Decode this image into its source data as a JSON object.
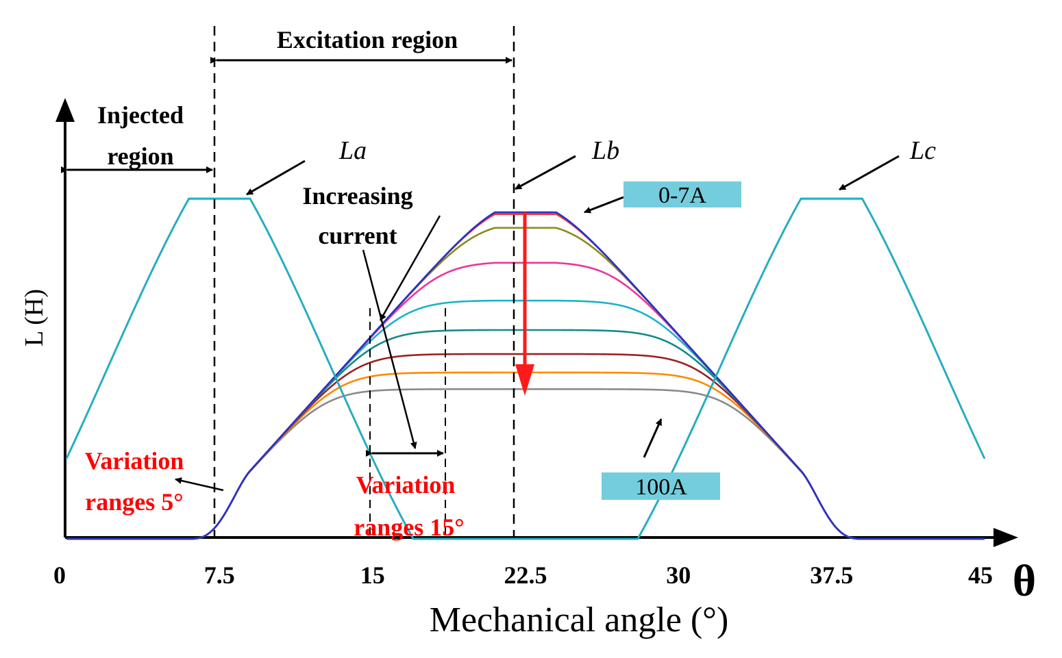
{
  "chart_data": {
    "type": "line",
    "title": "",
    "xlabel": "Mechanical angle (°)",
    "ylabel": "L (H)",
    "x_symbol": "θ",
    "xlim": [
      0,
      45
    ],
    "ylim": [
      0,
      1
    ],
    "grid": false,
    "x_ticks": [
      0,
      7.5,
      15,
      22.5,
      30,
      37.5,
      45
    ],
    "x_tick_labels": [
      "0",
      "7.5",
      "15",
      "22.5",
      "30",
      "37.5",
      "45"
    ],
    "phase_curves": [
      {
        "name": "La",
        "color": "#ff3333",
        "peak_center": 7.5,
        "l_min": 0.0,
        "l_max": 0.92,
        "flat_half_width": 1.5,
        "base_half_width": 9.5
      },
      {
        "name": "Lc",
        "color": "#1ab3c6",
        "peak_center": 37.5,
        "l_min": 0.0,
        "l_max": 0.92,
        "flat_half_width": 1.5,
        "base_half_width": 9.5
      }
    ],
    "lb_series": [
      {
        "current": "0-7A",
        "color": "#2233cc",
        "peak": 0.93
      },
      {
        "current": "0-7A",
        "color": "#ff3333",
        "peak": 0.92
      },
      {
        "current": "",
        "color": "#8a8a1a",
        "peak": 0.86
      },
      {
        "current": "",
        "color": "#ee3399",
        "peak": 0.75
      },
      {
        "current": "",
        "color": "#1ab3c6",
        "peak": 0.645
      },
      {
        "current": "",
        "color": "#128a88",
        "peak": 0.565
      },
      {
        "current": "",
        "color": "#992222",
        "peak": 0.5
      },
      {
        "current": "",
        "color": "#ff8800",
        "peak": 0.45
      },
      {
        "current": "100A",
        "color": "#8a8a8a",
        "peak": 0.405
      }
    ],
    "lb_center": 22.5,
    "regions": {
      "injected": {
        "label_line1": "Injected",
        "label_line2": "region",
        "from": 0,
        "to": 7.5
      },
      "excitation": {
        "label": "Excitation region",
        "from": 7.5,
        "to": 22.5
      },
      "variation_15": {
        "from": 15,
        "to": 19
      }
    },
    "annotations": {
      "la": "La",
      "lb": "Lb",
      "lc": "Lc",
      "increasing_line1": "Increasing",
      "increasing_line2": "current",
      "low_current_box": "0-7A",
      "high_current_box": "100A",
      "var5_line1": "Variation",
      "var5_line2": "ranges  5°",
      "var15_line1": "Variation",
      "var15_line2": "ranges 15°"
    },
    "colors": {
      "axis": "#000000",
      "box_fill": "#74cddd",
      "highlight_text": "#ff0000",
      "down_arrow": "#ff1a1a"
    }
  }
}
